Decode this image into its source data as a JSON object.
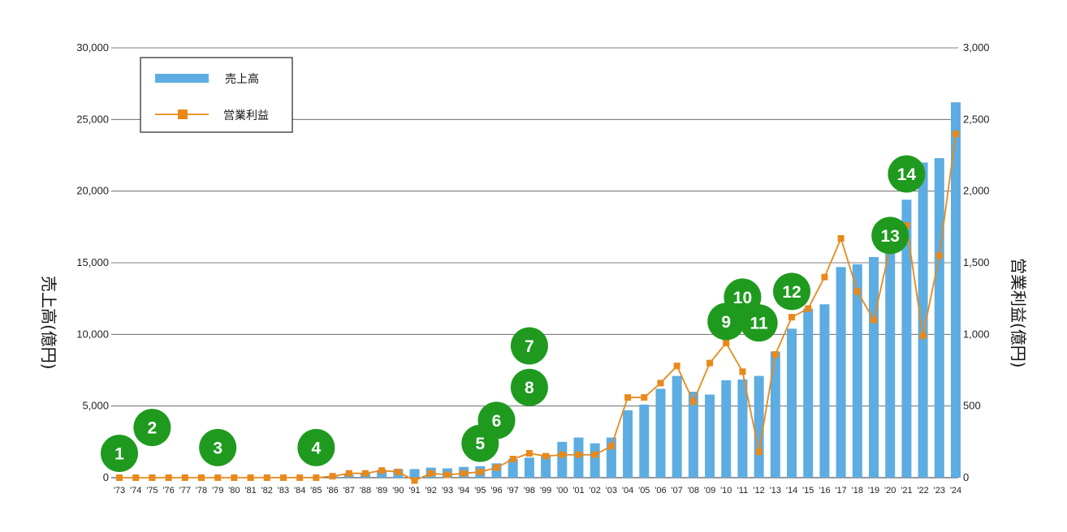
{
  "chart_data": {
    "type": "bar",
    "categories": [
      "'73",
      "'74",
      "'75",
      "'76",
      "'77",
      "'78",
      "'79",
      "'80",
      "'81",
      "'82",
      "'83",
      "'84",
      "'85",
      "'86",
      "'87",
      "'88",
      "'89",
      "'90",
      "'91",
      "'92",
      "'93",
      "'94",
      "'95",
      "'96",
      "'97",
      "'98",
      "'99",
      "'00",
      "'01",
      "'02",
      "'03",
      "'04",
      "'05",
      "'06",
      "'07",
      "'08",
      "'09",
      "'10",
      "'11",
      "'12",
      "'13",
      "'14",
      "'15",
      "'16",
      "'17",
      "'18",
      "'19",
      "'20",
      "'21",
      "'22",
      "'23",
      "'24"
    ],
    "series": [
      {
        "name": "売上高",
        "type": "bar",
        "axis": "left",
        "color": "#5dade2",
        "values": [
          0,
          0,
          0,
          0,
          0,
          0,
          0,
          0,
          0,
          0,
          0,
          0,
          0,
          100,
          200,
          300,
          550,
          600,
          600,
          700,
          650,
          750,
          800,
          1000,
          1300,
          1400,
          1600,
          2500,
          2800,
          2400,
          2800,
          4700,
          5100,
          6200,
          7100,
          6000,
          5800,
          6800,
          6850,
          7100,
          8800,
          10400,
          11800,
          12100,
          14700,
          14900,
          15400,
          16500,
          19400,
          22000,
          22300,
          26200
        ]
      },
      {
        "name": "営業利益",
        "type": "line",
        "axis": "right",
        "color": "#e8891a",
        "values": [
          0,
          0,
          0,
          0,
          0,
          0,
          0,
          0,
          0,
          0,
          0,
          0,
          0,
          10,
          30,
          30,
          50,
          40,
          -20,
          30,
          20,
          30,
          40,
          70,
          130,
          170,
          150,
          160,
          160,
          160,
          220,
          560,
          560,
          660,
          780,
          530,
          800,
          940,
          740,
          180,
          860,
          1120,
          1180,
          1400,
          1670,
          1300,
          1100,
          1610,
          1760,
          990,
          1550,
          2400
        ]
      }
    ],
    "y_left": {
      "label": "売上高(億円)",
      "ylim": [
        0,
        30000
      ],
      "ticks": [
        "0",
        "5,000",
        "10,000",
        "15,000",
        "20,000",
        "25,000",
        "30,000"
      ]
    },
    "y_right": {
      "label": "営業利益(億円)",
      "ylim": [
        0,
        3000
      ],
      "ticks": [
        "0",
        "500",
        "1,000",
        "1,500",
        "2,000",
        "2,500",
        "3,000"
      ]
    },
    "grid": true,
    "legend": {
      "position": "top-left",
      "entries": [
        "売上高",
        "営業利益"
      ]
    },
    "annotations": [
      {
        "label": "1",
        "year": "'73",
        "y": 1700
      },
      {
        "label": "2",
        "year": "'75",
        "y": 3500
      },
      {
        "label": "3",
        "year": "'79",
        "y": 2100
      },
      {
        "label": "4",
        "year": "'85",
        "y": 2100
      },
      {
        "label": "5",
        "year": "'95",
        "y": 2400
      },
      {
        "label": "6",
        "year": "'96",
        "y": 4000
      },
      {
        "label": "7",
        "year": "'98",
        "y": 9200
      },
      {
        "label": "8",
        "year": "'98",
        "y": 6300
      },
      {
        "label": "9",
        "year": "'10",
        "y": 10900
      },
      {
        "label": "10",
        "year": "'11",
        "y": 12600
      },
      {
        "label": "11",
        "year": "'12",
        "y": 10800
      },
      {
        "label": "12",
        "year": "'14",
        "y": 13000
      },
      {
        "label": "13",
        "year": "'20",
        "y": 16900
      },
      {
        "label": "14",
        "year": "'21",
        "y": 21200
      }
    ],
    "badge_color": "#1f9a1f"
  }
}
